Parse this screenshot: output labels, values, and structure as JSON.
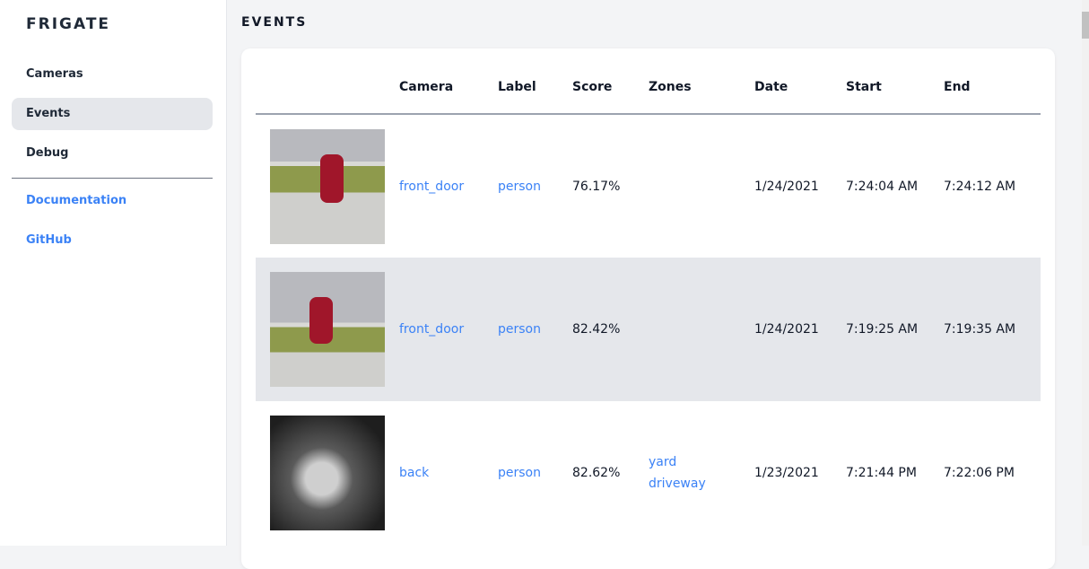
{
  "app": {
    "title": "FRIGATE"
  },
  "sidebar": {
    "items": [
      {
        "label": "Cameras"
      },
      {
        "label": "Events"
      },
      {
        "label": "Debug"
      }
    ],
    "links": [
      {
        "label": "Documentation"
      },
      {
        "label": "GitHub"
      }
    ]
  },
  "page": {
    "title": "EVENTS"
  },
  "table": {
    "headers": [
      "",
      "Camera",
      "Label",
      "Score",
      "Zones",
      "Date",
      "Start",
      "End"
    ],
    "rows": [
      {
        "camera": "front_door",
        "label": "person",
        "score": "76.17%",
        "zones": [
          "",
          ""
        ],
        "date": "1/24/2021",
        "start": "7:24:04 AM",
        "end": "7:24:12 AM"
      },
      {
        "camera": "front_door",
        "label": "person",
        "score": "82.42%",
        "zones": [
          "",
          ""
        ],
        "date": "1/24/2021",
        "start": "7:19:25 AM",
        "end": "7:19:35 AM"
      },
      {
        "camera": "back",
        "label": "person",
        "score": "82.62%",
        "zones": [
          "yard",
          "driveway"
        ],
        "date": "1/23/2021",
        "start": "7:21:44 PM",
        "end": "7:22:06 PM"
      }
    ]
  },
  "colors": {
    "accent": "#3b82f6",
    "active_bg": "#e5e7eb"
  }
}
